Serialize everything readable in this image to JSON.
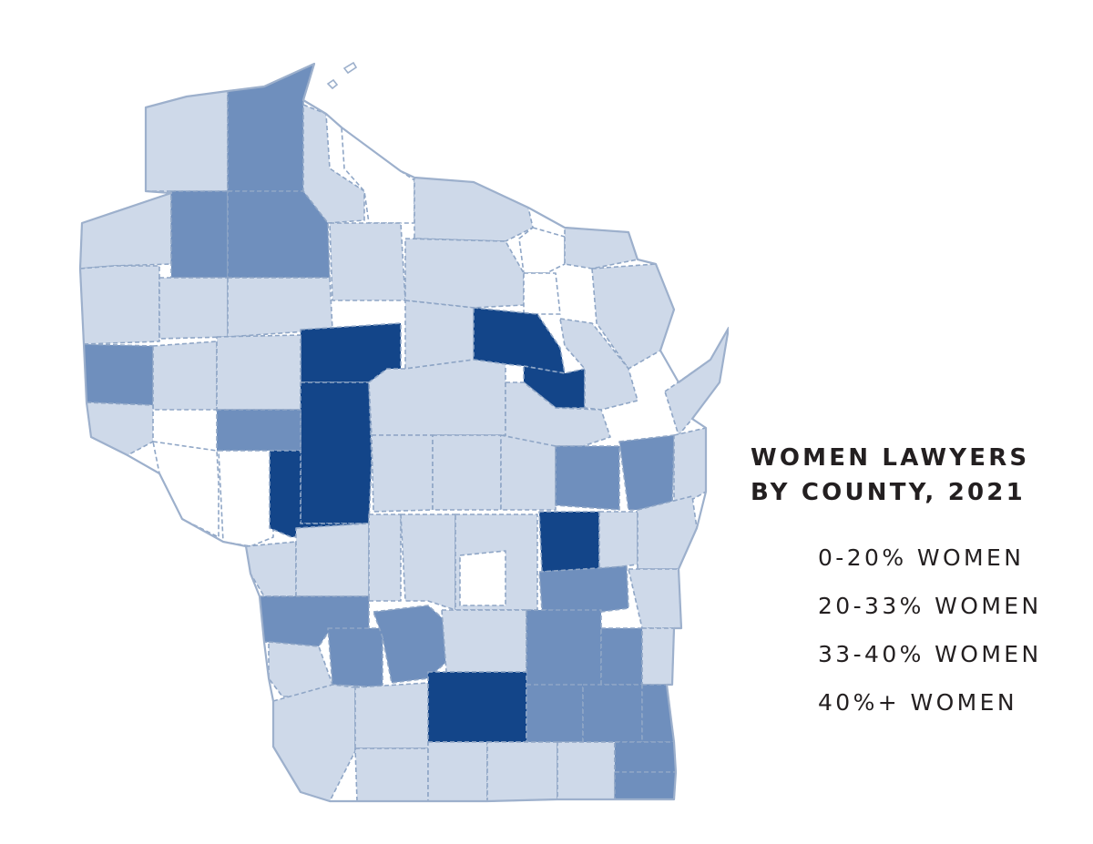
{
  "legend": {
    "title_line1": "WOMEN LAWYERS",
    "title_line2": "BY COUNTY, 2021",
    "categories": [
      {
        "label": "0-20% WOMEN",
        "color": "#ffffff"
      },
      {
        "label": "20-33% WOMEN",
        "color": "#ced9e9"
      },
      {
        "label": "33-40% WOMEN",
        "color": "#6f8fbd"
      },
      {
        "label": "40%+ WOMEN",
        "color": "#134589"
      }
    ]
  },
  "map": {
    "region": "Wisconsin",
    "background": "#ffffff",
    "border_color": "#8fa6c6"
  }
}
